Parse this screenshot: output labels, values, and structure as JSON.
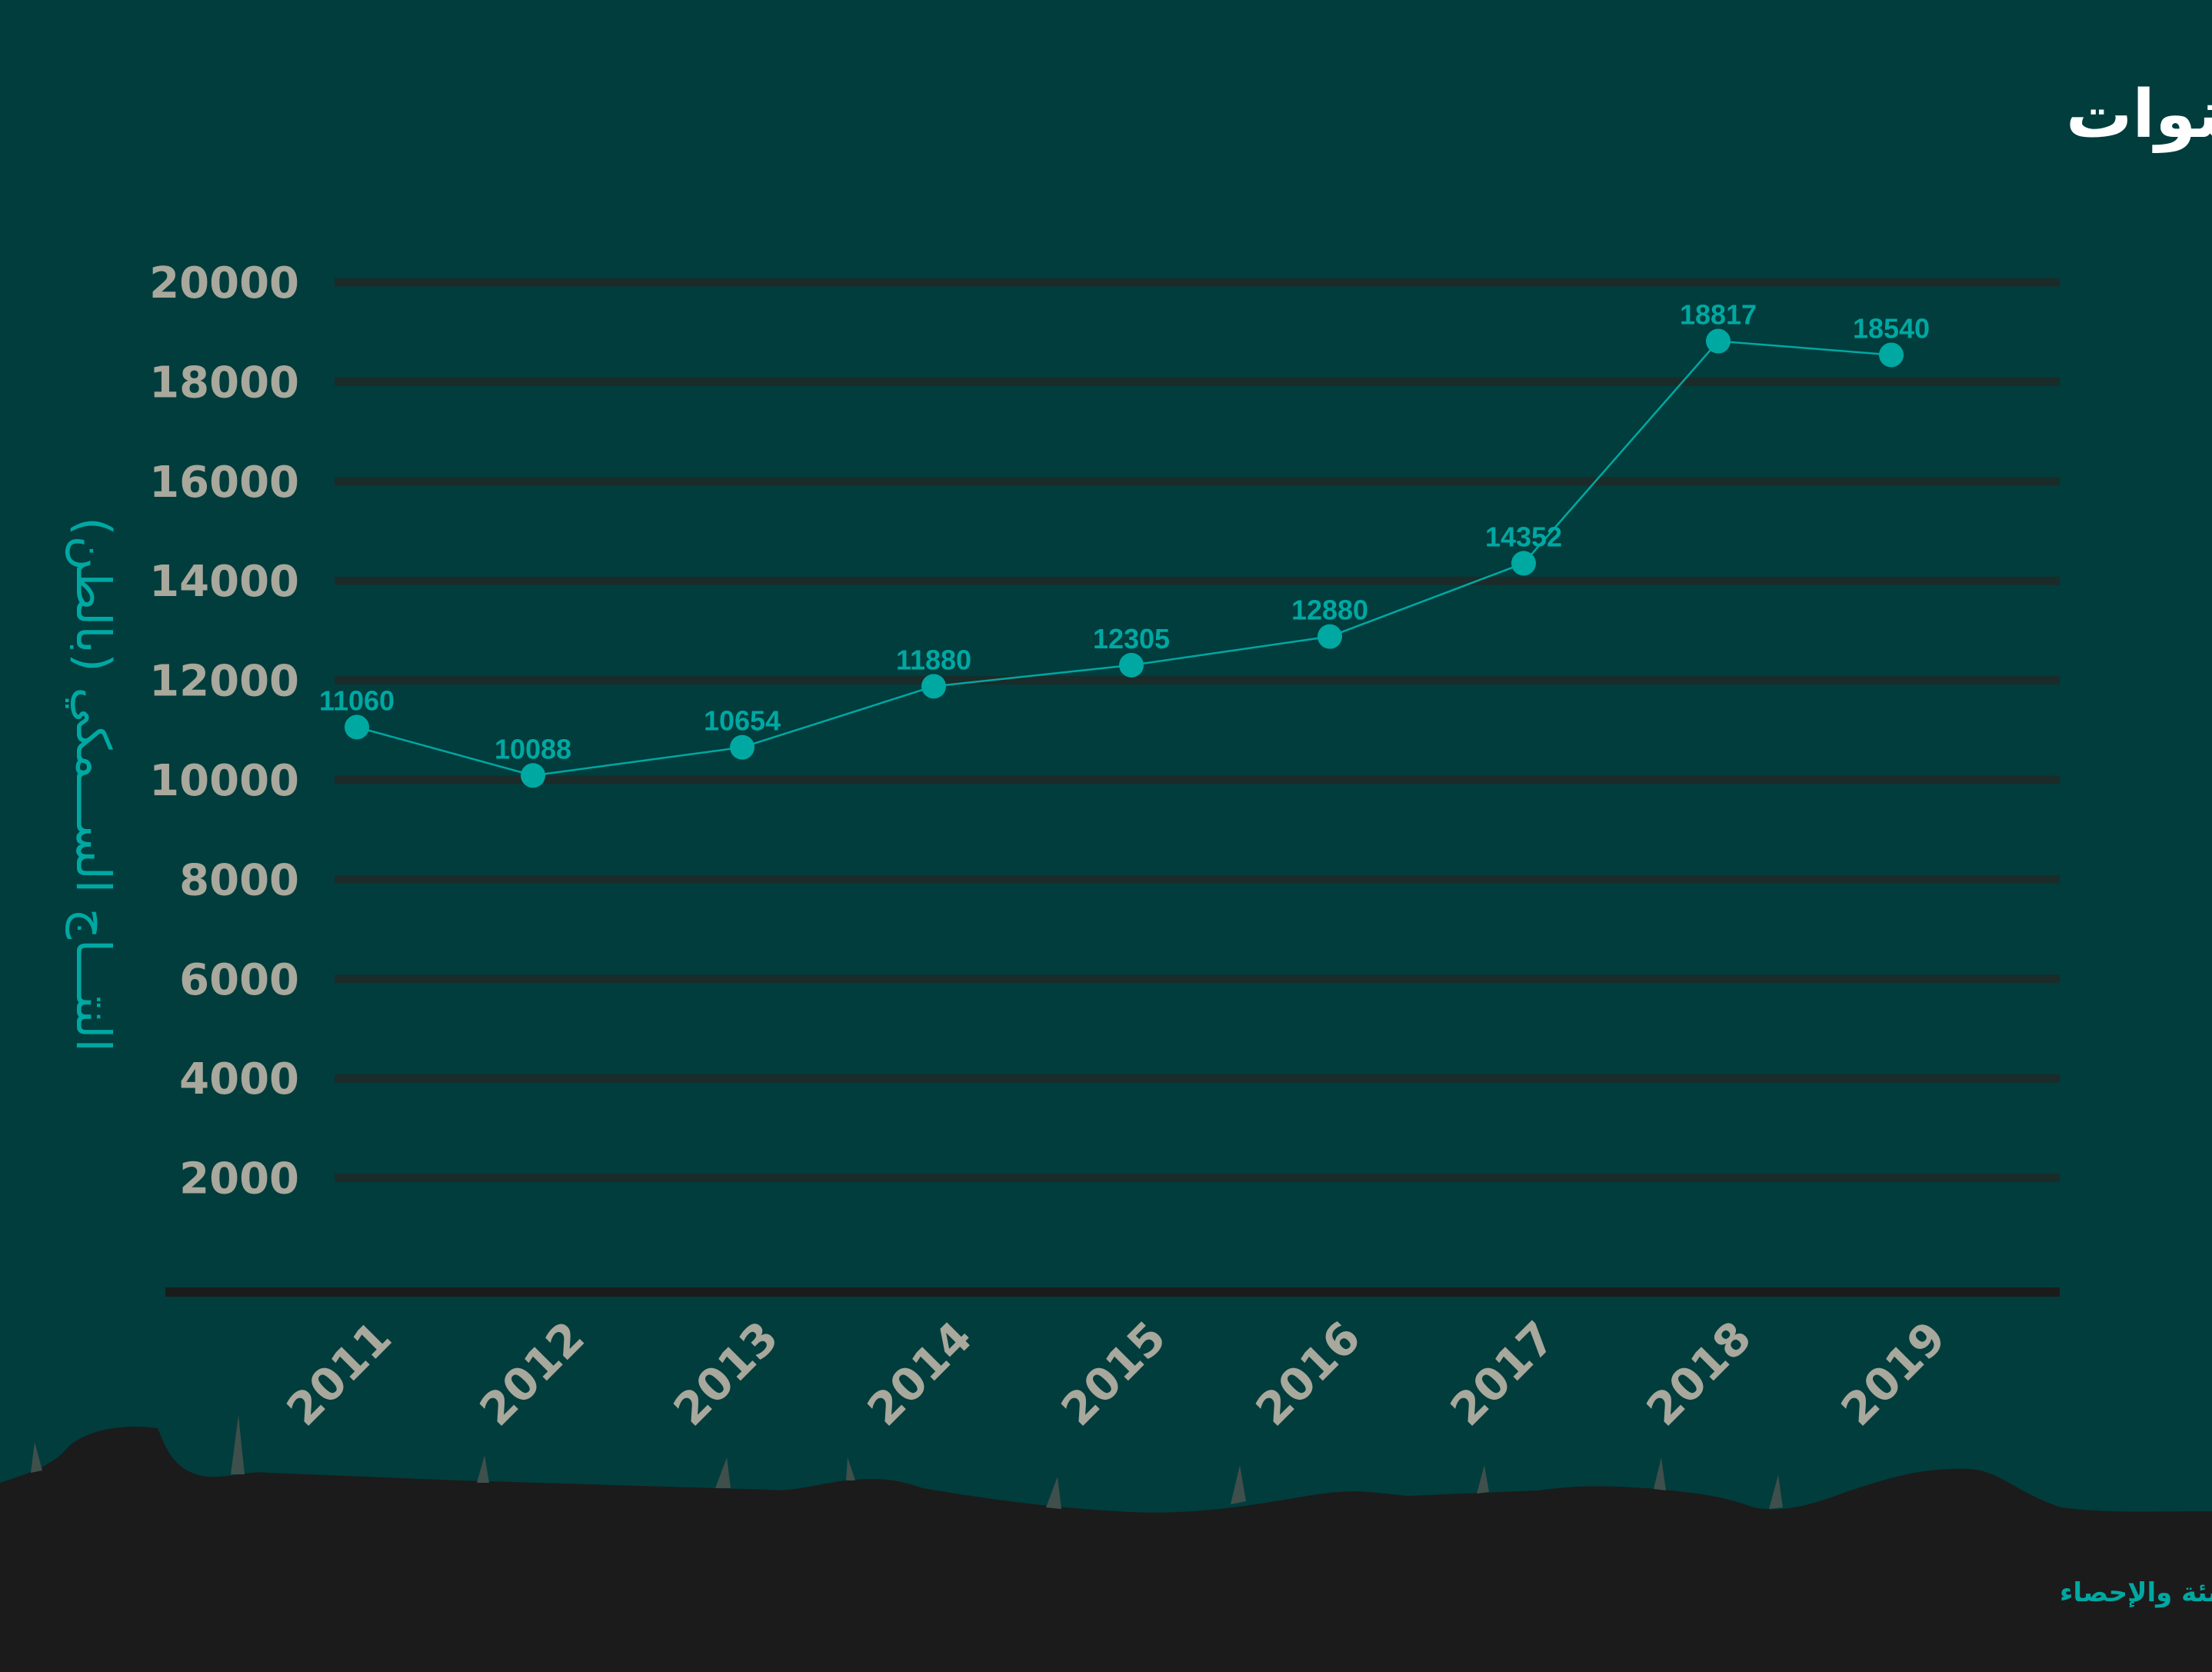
{
  "chart_data": {
    "type": "line",
    "title": "الانتاج السمكي في القابوطي خلال عشر سنوات",
    "xlabel": "",
    "ylabel": "النتـــاج الســـمكي (بالطن)",
    "categories": [
      "2011",
      "2012",
      "2013",
      "2014",
      "2015",
      "2016",
      "2017",
      "2018",
      "2019"
    ],
    "series": [
      {
        "name": "الانتاج السمكي",
        "values": [
          11060,
          10088,
          10654,
          11880,
          12305,
          12880,
          14352,
          18817,
          18540
        ]
      }
    ],
    "yticks": [
      2000,
      4000,
      6000,
      8000,
      10000,
      12000,
      14000,
      16000,
      18000,
      20000
    ],
    "ylim": [
      0,
      20000
    ],
    "grid": true,
    "source": "المصدر: النشرة السنوية لإحصاءات الإنتاج السمكي - الجهاز المركزي للتعبئة والإحصاء",
    "colors": {
      "background": "#013d3d",
      "line": "#00a8a2",
      "grid": "#1b2b29",
      "ground": "#1b1b1b",
      "tick": "#a8a89c"
    }
  }
}
